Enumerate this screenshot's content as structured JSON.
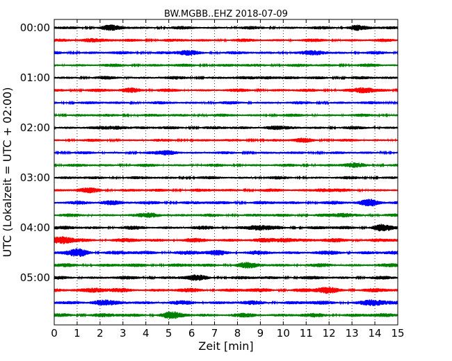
{
  "chart_data": {
    "type": "line",
    "title": "BW.MGBB..EHZ 2018-07-09",
    "xlabel": "Zeit  [min]",
    "ylabel": "UTC (Lokalzeit = UTC + 02:00)",
    "xlim": [
      0,
      15
    ],
    "x_ticks": [
      0,
      1,
      2,
      3,
      4,
      5,
      6,
      7,
      8,
      9,
      10,
      11,
      12,
      13,
      14,
      15
    ],
    "y_ticks": [
      "00:00",
      "01:00",
      "02:00",
      "03:00",
      "04:00",
      "05:00"
    ],
    "grid": "vertical dotted",
    "trace_colors": [
      "#000000",
      "#ff0000",
      "#0000ff",
      "#008000"
    ],
    "traces": [
      {
        "start": "00:00",
        "amplitude": 0.35,
        "bursts": [
          [
            2.5,
            0.4
          ],
          [
            13.2,
            0.45
          ]
        ]
      },
      {
        "start": "00:15",
        "amplitude": 0.35,
        "bursts": [
          [
            1.5,
            0.35
          ]
        ]
      },
      {
        "start": "00:30",
        "amplitude": 0.35,
        "bursts": [
          [
            5.8,
            0.4
          ],
          [
            11.5,
            0.35
          ]
        ]
      },
      {
        "start": "00:45",
        "amplitude": 0.35,
        "bursts": []
      },
      {
        "start": "01:00",
        "amplitude": 0.35,
        "bursts": [
          [
            9.3,
            0.3
          ]
        ]
      },
      {
        "start": "01:15",
        "amplitude": 0.35,
        "bursts": [
          [
            3.4,
            0.4
          ],
          [
            13.5,
            0.5
          ]
        ]
      },
      {
        "start": "01:30",
        "amplitude": 0.33,
        "bursts": []
      },
      {
        "start": "01:45",
        "amplitude": 0.33,
        "bursts": []
      },
      {
        "start": "02:00",
        "amplitude": 0.35,
        "bursts": [
          [
            2.8,
            0.35
          ],
          [
            9.5,
            0.3
          ]
        ]
      },
      {
        "start": "02:15",
        "amplitude": 0.3,
        "bursts": [
          [
            10.9,
            0.35
          ]
        ]
      },
      {
        "start": "02:30",
        "amplitude": 0.3,
        "bursts": [
          [
            5.0,
            0.45
          ]
        ]
      },
      {
        "start": "02:45",
        "amplitude": 0.33,
        "bursts": [
          [
            13.1,
            0.35
          ]
        ]
      },
      {
        "start": "03:00",
        "amplitude": 0.33,
        "bursts": []
      },
      {
        "start": "03:15",
        "amplitude": 0.35,
        "bursts": [
          [
            1.6,
            0.35
          ],
          [
            11.7,
            0.3
          ]
        ]
      },
      {
        "start": "03:30",
        "amplitude": 0.38,
        "bursts": [
          [
            2.4,
            0.4
          ],
          [
            13.8,
            0.7
          ]
        ]
      },
      {
        "start": "03:45",
        "amplitude": 0.35,
        "bursts": [
          [
            4.3,
            0.35
          ],
          [
            12.6,
            0.3
          ]
        ]
      },
      {
        "start": "04:00",
        "amplitude": 0.4,
        "bursts": [
          [
            8.9,
            0.45
          ],
          [
            14.3,
            0.55
          ]
        ]
      },
      {
        "start": "04:15",
        "amplitude": 0.45,
        "bursts": [
          [
            0.4,
            0.6
          ],
          [
            10.1,
            0.4
          ]
        ]
      },
      {
        "start": "04:30",
        "amplitude": 0.45,
        "bursts": [
          [
            1.1,
            0.65
          ],
          [
            7.1,
            0.35
          ]
        ]
      },
      {
        "start": "04:45",
        "amplitude": 0.4,
        "bursts": [
          [
            8.4,
            0.35
          ]
        ]
      },
      {
        "start": "05:00",
        "amplitude": 0.38,
        "bursts": [
          [
            6.2,
            0.4
          ]
        ]
      },
      {
        "start": "05:15",
        "amplitude": 0.45,
        "bursts": [
          [
            1.8,
            0.4
          ],
          [
            11.9,
            0.5
          ]
        ]
      },
      {
        "start": "05:30",
        "amplitude": 0.45,
        "bursts": [
          [
            2.0,
            0.4
          ],
          [
            14.0,
            0.45
          ]
        ]
      },
      {
        "start": "05:45",
        "amplitude": 0.45,
        "bursts": [
          [
            5.1,
            0.45
          ]
        ]
      }
    ]
  }
}
